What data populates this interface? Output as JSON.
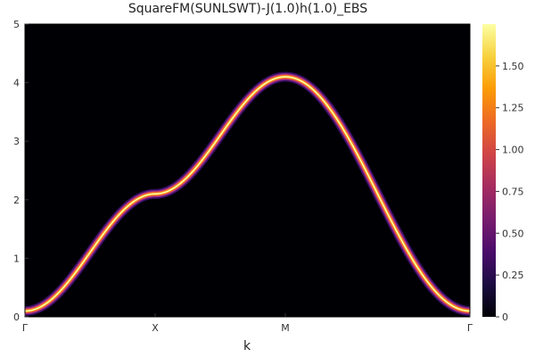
{
  "chart_data": {
    "type": "heatmap",
    "title": "SquareFM(SUNLSWT)-J(1.0)h(1.0)_EBS",
    "xlabel": "k",
    "ylabel": "",
    "x_ticks": [
      "Γ",
      "X",
      "M",
      "Γ"
    ],
    "y_ticks": [
      "0",
      "1",
      "2",
      "3",
      "4",
      "5"
    ],
    "ylim": [
      0,
      5
    ],
    "colormap": "inferno",
    "colorbar": {
      "range": [
        0,
        1.75
      ],
      "ticks": [
        "0",
        "0.25",
        "0.50",
        "0.75",
        "1.00",
        "1.25",
        "1.50"
      ],
      "colors": [
        "#000004",
        "#1b0c41",
        "#4a0c6b",
        "#781c6d",
        "#a52c60",
        "#cf4446",
        "#ed6925",
        "#fb9b06",
        "#f7d13d",
        "#fcffa4"
      ]
    },
    "band": {
      "path_segments": [
        "Γ-X",
        "X-M",
        "M-Γ"
      ],
      "energy_at_Gamma": 0.1,
      "energy_at_X": 2.1,
      "energy_at_M": 4.1,
      "peak_intensity": 1.75,
      "background_intensity": 0
    }
  }
}
